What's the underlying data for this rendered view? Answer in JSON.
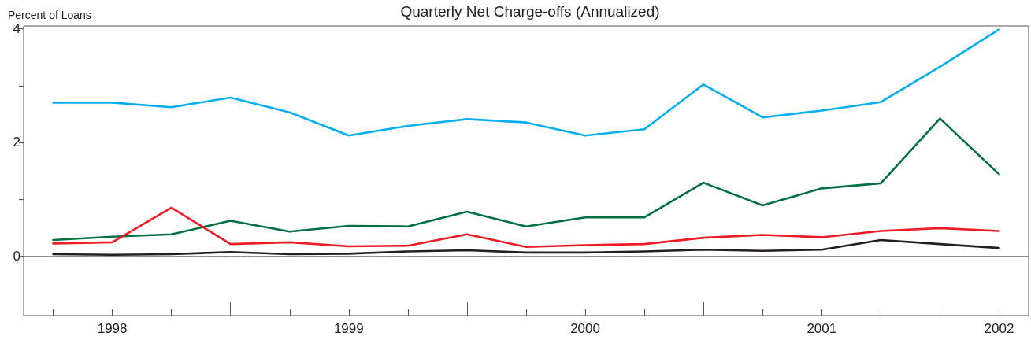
{
  "chart_data": {
    "type": "line",
    "title": "Quarterly Net Charge-offs (Annualized)",
    "ylabel": "Percent of Loans",
    "categories": [
      null,
      "1998",
      null,
      null,
      null,
      "1999",
      null,
      null,
      null,
      "2000",
      null,
      null,
      null,
      "2001",
      null,
      null,
      "2002"
    ],
    "series": [
      {
        "color": "#00aeef",
        "values": [
          2.7,
          2.7,
          2.62,
          2.79,
          2.53,
          2.12,
          2.29,
          2.41,
          2.35,
          2.12,
          2.23,
          3.02,
          2.44,
          2.56,
          2.71,
          3.33,
          3.99
        ]
      },
      {
        "color": "#006f41",
        "values": [
          0.28,
          0.34,
          0.38,
          0.62,
          0.43,
          0.53,
          0.52,
          0.78,
          0.52,
          0.68,
          0.68,
          1.29,
          0.89,
          1.19,
          1.28,
          2.42,
          1.44
        ]
      },
      {
        "color": "#ed1c24",
        "values": [
          0.22,
          0.24,
          0.85,
          0.21,
          0.24,
          0.17,
          0.18,
          0.38,
          0.16,
          0.19,
          0.21,
          0.32,
          0.37,
          0.33,
          0.44,
          0.49,
          0.44
        ]
      },
      {
        "color": "#231f20",
        "values": [
          0.03,
          0.02,
          0.03,
          0.07,
          0.03,
          0.04,
          0.08,
          0.1,
          0.06,
          0.06,
          0.08,
          0.11,
          0.09,
          0.11,
          0.28,
          0.21,
          0.14
        ]
      }
    ],
    "ylim": [
      -1.05,
      4.05
    ],
    "yticks": [
      0,
      {
        "value": 1,
        "label": null
      },
      2,
      {
        "value": 3,
        "label": null
      },
      4
    ],
    "ref_lines": [
      {
        "axis": "y",
        "value": 0,
        "color": "#8c8c8c"
      }
    ],
    "grid": false,
    "marker": "none",
    "line_style": "solid"
  }
}
